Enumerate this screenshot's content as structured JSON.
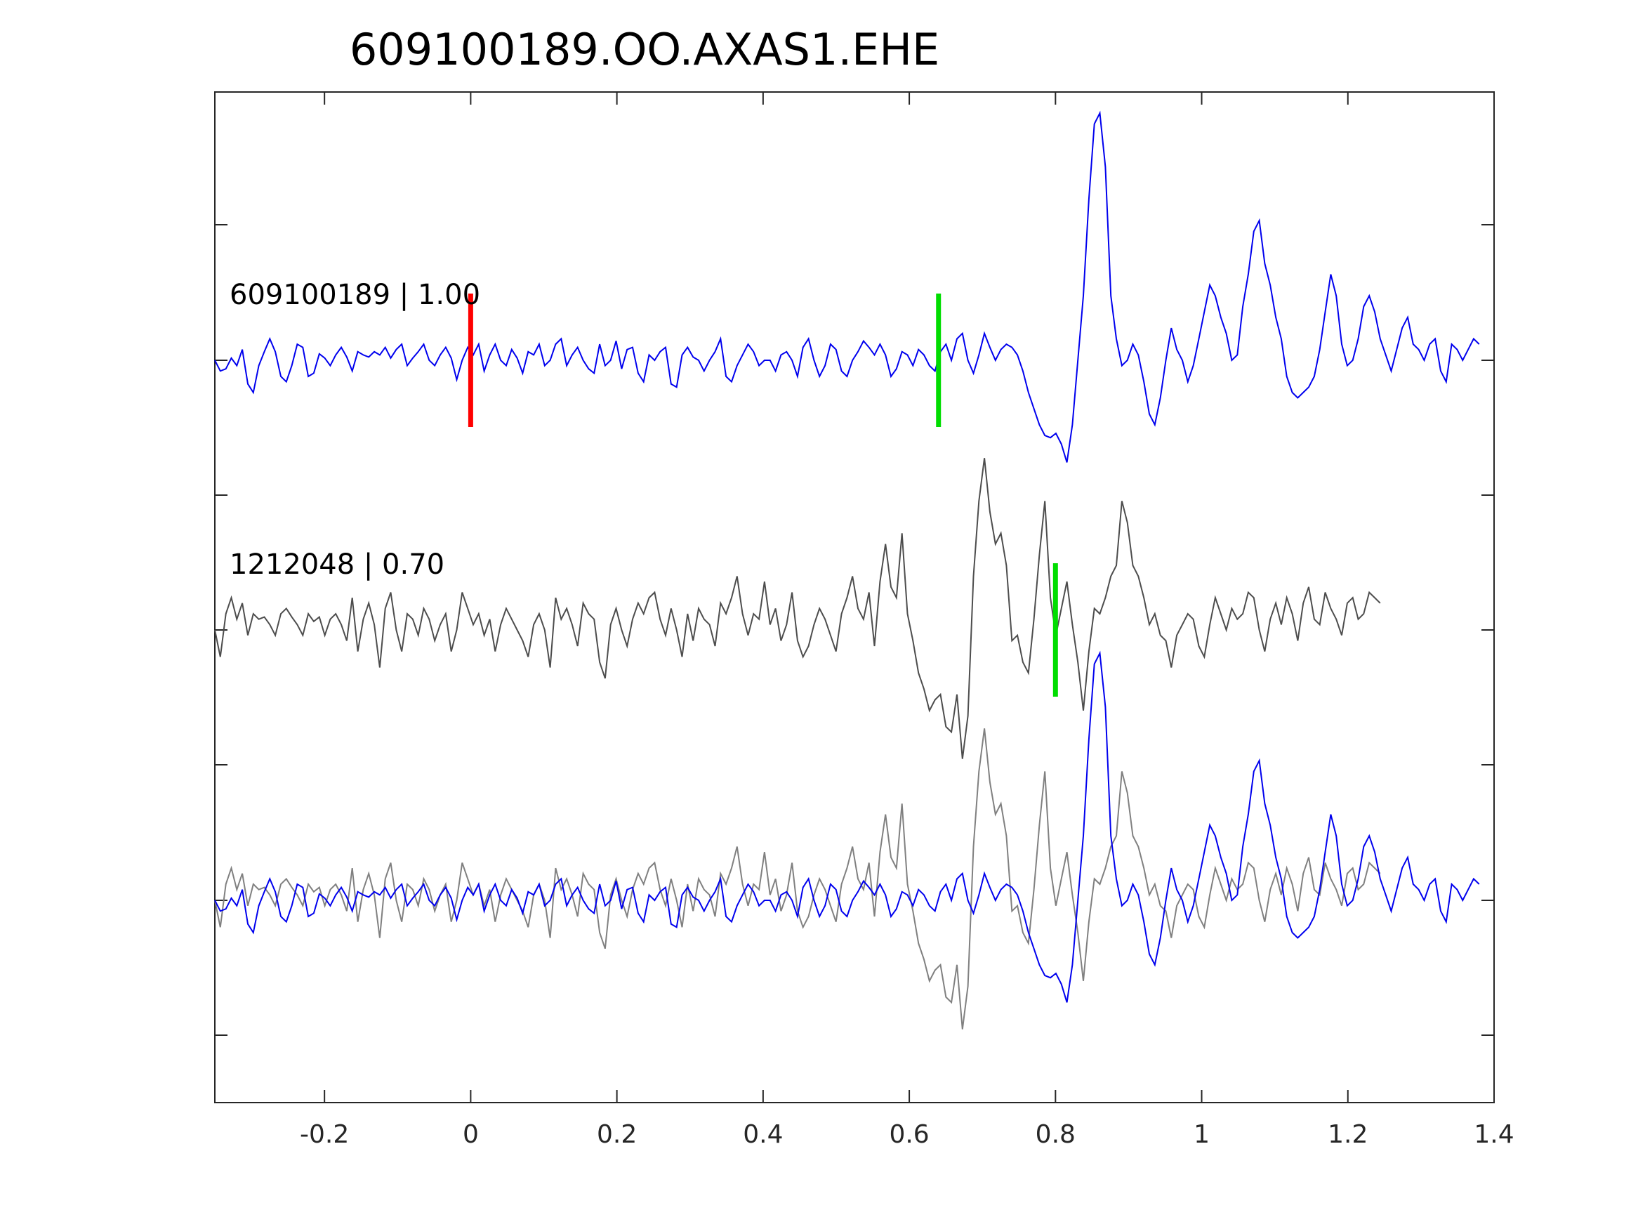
{
  "chart_data": {
    "type": "line",
    "title": "609100189.OO.AXAS1.EHE",
    "xlabel": "",
    "ylabel": "",
    "xlim": [
      -0.35,
      1.4
    ],
    "x_ticks": [
      -0.2,
      0,
      0.2,
      0.4,
      0.6,
      0.8,
      1,
      1.2,
      1.4
    ],
    "x_tick_labels": [
      "-0.2",
      "0",
      "0.2",
      "0.4",
      "0.6",
      "0.8",
      "1",
      "1.2",
      "1.4"
    ],
    "grid": false,
    "traces": [
      {
        "label": "609100189 | 1.00",
        "color": "#0000ee",
        "baseline_level": 2
      },
      {
        "label": "1212048 | 0.70",
        "color": "#4d4d4d",
        "baseline_level": 1
      },
      {
        "label": "",
        "color": "#808080",
        "baseline_level": 0,
        "overlay": true
      }
    ],
    "picks": [
      {
        "trace": 0,
        "time": 0.0,
        "color": "#ff0000"
      },
      {
        "trace": 0,
        "time": 0.64,
        "color": "#00dd00"
      },
      {
        "trace": 1,
        "time": 0.8,
        "color": "#00dd00"
      }
    ],
    "waveform_sampling": 0.004,
    "waveform_blue": [
      0.0,
      -0.1,
      -0.08,
      0.02,
      -0.05,
      0.1,
      -0.22,
      -0.3,
      -0.05,
      0.08,
      0.2,
      0.08,
      -0.15,
      -0.2,
      -0.05,
      0.15,
      0.12,
      -0.15,
      -0.12,
      0.06,
      0.02,
      -0.05,
      0.05,
      0.12,
      0.03,
      -0.1,
      0.08,
      0.05,
      0.03,
      0.08,
      0.05,
      0.12,
      0.02,
      0.1,
      0.15,
      -0.05,
      0.02,
      0.08,
      0.15,
      0.0,
      -0.05,
      0.05,
      0.12,
      0.02,
      -0.18,
      0.0,
      0.12,
      0.05,
      0.15,
      -0.1,
      0.05,
      0.15,
      0.0,
      -0.05,
      0.1,
      0.02,
      -0.12,
      0.08,
      0.05,
      0.15,
      -0.05,
      0.0,
      0.15,
      0.2,
      -0.05,
      0.05,
      0.12,
      0.0,
      -0.08,
      -0.12,
      0.15,
      -0.05,
      0.0,
      0.18,
      -0.08,
      0.1,
      0.12,
      -0.12,
      -0.2,
      0.05,
      0.0,
      0.08,
      0.12,
      -0.22,
      -0.25,
      0.05,
      0.12,
      0.03,
      0.0,
      -0.1,
      0.0,
      0.08,
      0.2,
      -0.15,
      -0.2,
      -0.05,
      0.05,
      0.15,
      0.08,
      -0.05,
      0.0,
      0.0,
      -0.1,
      0.05,
      0.08,
      0.0,
      -0.15,
      0.12,
      0.2,
      0.0,
      -0.15,
      -0.05,
      0.15,
      0.1,
      -0.1,
      -0.15,
      0.0,
      0.08,
      0.18,
      0.12,
      0.05,
      0.15,
      0.05,
      -0.15,
      -0.08,
      0.08,
      0.05,
      -0.05,
      0.1,
      0.05,
      -0.05,
      -0.1,
      0.08,
      0.15,
      0.0,
      0.2,
      0.25,
      0.0,
      -0.12,
      0.05,
      0.25,
      0.12,
      0.0,
      0.1,
      0.15,
      0.12,
      0.05,
      -0.1,
      -0.3,
      -0.45,
      -0.6,
      -0.7,
      -0.72,
      -0.68,
      -0.78,
      -0.95,
      -0.6,
      0.0,
      0.6,
      1.5,
      2.2,
      2.3,
      1.8,
      0.6,
      0.2,
      -0.05,
      0.0,
      0.15,
      0.05,
      -0.2,
      -0.5,
      -0.6,
      -0.35,
      0.0,
      0.3,
      0.1,
      0.0,
      -0.2,
      -0.05,
      0.2,
      0.45,
      0.7,
      0.6,
      0.4,
      0.25,
      0.0,
      0.05,
      0.5,
      0.8,
      1.2,
      1.3,
      0.9,
      0.7,
      0.4,
      0.2,
      -0.15,
      -0.3,
      -0.35,
      -0.3,
      -0.25,
      -0.15,
      0.1,
      0.45,
      0.8,
      0.6,
      0.15,
      -0.05,
      0.0,
      0.2,
      0.5,
      0.6,
      0.45,
      0.2,
      0.05,
      -0.1,
      0.1,
      0.3,
      0.4,
      0.15,
      0.1,
      0.0,
      0.15,
      0.2,
      -0.1,
      -0.2,
      0.15,
      0.1,
      0.0,
      0.1,
      0.2,
      0.15
    ],
    "waveform_gray": [
      0.0,
      -0.25,
      0.15,
      0.3,
      0.1,
      0.25,
      -0.05,
      0.15,
      0.1,
      0.12,
      0.05,
      -0.05,
      0.15,
      0.2,
      0.12,
      0.05,
      -0.05,
      0.15,
      0.08,
      0.12,
      -0.05,
      0.1,
      0.15,
      0.05,
      -0.1,
      0.3,
      -0.2,
      0.1,
      0.25,
      0.05,
      -0.35,
      0.2,
      0.35,
      0.0,
      -0.2,
      0.15,
      0.1,
      -0.05,
      0.2,
      0.1,
      -0.1,
      0.05,
      0.15,
      -0.2,
      0.0,
      0.35,
      0.2,
      0.05,
      0.15,
      -0.05,
      0.1,
      -0.2,
      0.05,
      0.2,
      0.1,
      0.0,
      -0.1,
      -0.25,
      0.05,
      0.15,
      0.0,
      -0.35,
      0.3,
      0.1,
      0.2,
      0.05,
      -0.15,
      0.25,
      0.15,
      0.1,
      -0.3,
      -0.45,
      0.05,
      0.2,
      0.0,
      -0.15,
      0.1,
      0.25,
      0.15,
      0.3,
      0.35,
      0.1,
      -0.05,
      0.2,
      0.0,
      -0.25,
      0.15,
      -0.1,
      0.2,
      0.1,
      0.05,
      -0.15,
      0.25,
      0.15,
      0.3,
      0.5,
      0.15,
      -0.05,
      0.15,
      0.1,
      0.45,
      0.05,
      0.2,
      -0.1,
      0.05,
      0.35,
      -0.1,
      -0.25,
      -0.15,
      0.05,
      0.2,
      0.1,
      -0.05,
      -0.2,
      0.15,
      0.3,
      0.5,
      0.2,
      0.1,
      0.35,
      -0.15,
      0.45,
      0.8,
      0.4,
      0.3,
      0.9,
      0.15,
      -0.1,
      -0.4,
      -0.55,
      -0.75,
      -0.65,
      -0.6,
      -0.9,
      -0.95,
      -0.6,
      -1.2,
      -0.8,
      0.5,
      1.2,
      1.6,
      1.1,
      0.8,
      0.9,
      0.6,
      -0.1,
      -0.05,
      -0.3,
      -0.4,
      0.1,
      0.7,
      1.2,
      0.3,
      -0.05,
      0.2,
      0.45,
      0.05,
      -0.3,
      -0.75,
      -0.2,
      0.2,
      0.15,
      0.3,
      0.5,
      0.6,
      1.2,
      1.0,
      0.6,
      0.5,
      0.3,
      0.05,
      0.15,
      -0.05,
      -0.1,
      -0.35,
      -0.05,
      0.05,
      0.15,
      0.1,
      -0.15,
      -0.25,
      0.05,
      0.3,
      0.15,
      0.0,
      0.2,
      0.1,
      0.15,
      0.35,
      0.3,
      0.0,
      -0.2,
      0.1,
      0.25,
      0.05,
      0.3,
      0.15,
      -0.1,
      0.25,
      0.4,
      0.1,
      0.05,
      0.35,
      0.2,
      0.1,
      -0.05,
      0.25,
      0.3,
      0.1,
      0.15,
      0.35,
      0.3,
      0.25
    ]
  }
}
